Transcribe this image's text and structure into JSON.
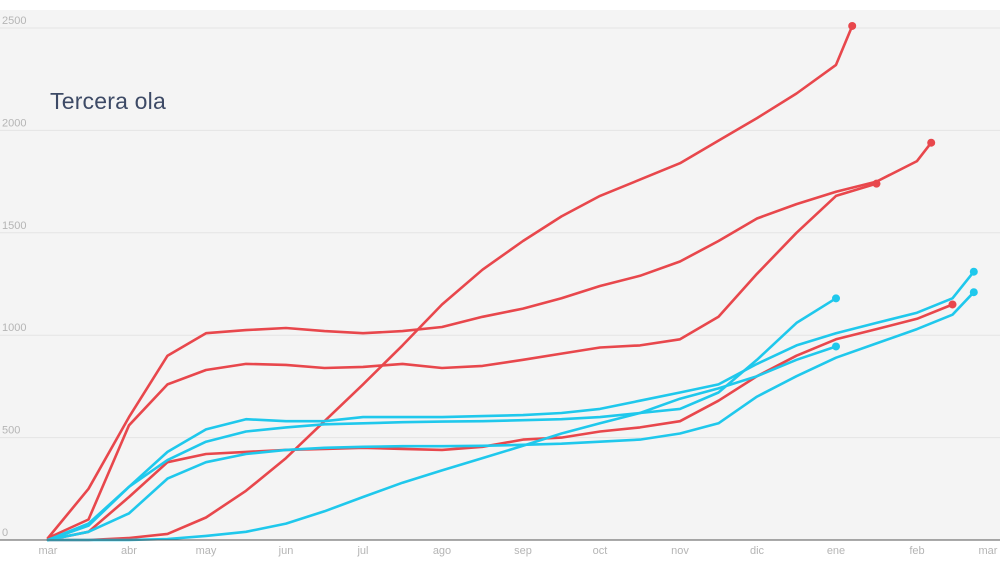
{
  "chart_data": {
    "type": "line",
    "title": "Tercera ola",
    "xlabel": "",
    "ylabel": "",
    "x_ticks": [
      "mar",
      "abr",
      "may",
      "jun",
      "jul",
      "ago",
      "sep",
      "oct",
      "nov",
      "dic",
      "ene",
      "feb",
      "mar"
    ],
    "y_ticks": [
      0,
      500,
      1000,
      1500,
      2000,
      2500
    ],
    "ylim": [
      0,
      2500
    ],
    "grid": true,
    "plot_background": "#f4f4f4",
    "series": [
      {
        "color": "#e8474c",
        "points": [
          [
            "mar",
            10
          ],
          [
            "mar+0.5",
            250
          ],
          [
            "abr",
            600
          ],
          [
            "abr+0.5",
            900
          ],
          [
            "may",
            1010
          ],
          [
            "may+0.5",
            1025
          ],
          [
            "jun",
            1035
          ],
          [
            "jun+0.5",
            1020
          ],
          [
            "jul",
            1010
          ],
          [
            "jul+0.5",
            1020
          ],
          [
            "ago",
            1040
          ],
          [
            "ago+0.5",
            1090
          ],
          [
            "sep",
            1130
          ],
          [
            "sep+0.5",
            1180
          ],
          [
            "oct",
            1240
          ],
          [
            "oct+0.5",
            1290
          ],
          [
            "nov",
            1360
          ],
          [
            "nov+0.5",
            1460
          ],
          [
            "dic",
            1570
          ],
          [
            "dic+0.5",
            1640
          ],
          [
            "ene",
            1700
          ],
          [
            "ene+0.5",
            1750
          ],
          [
            "feb",
            1850
          ],
          [
            "feb+0.2",
            1940
          ]
        ],
        "end_marker": true
      },
      {
        "color": "#e8474c",
        "points": [
          [
            "mar",
            10
          ],
          [
            "mar+0.5",
            100
          ],
          [
            "abr",
            560
          ],
          [
            "abr+0.5",
            760
          ],
          [
            "may",
            830
          ],
          [
            "may+0.5",
            860
          ],
          [
            "jun",
            855
          ],
          [
            "jun+0.5",
            840
          ],
          [
            "jul",
            845
          ],
          [
            "jul+0.5",
            860
          ],
          [
            "ago",
            840
          ],
          [
            "ago+0.5",
            850
          ],
          [
            "sep",
            880
          ],
          [
            "sep+0.5",
            910
          ],
          [
            "oct",
            940
          ],
          [
            "oct+0.5",
            950
          ],
          [
            "nov",
            980
          ],
          [
            "nov+0.5",
            1090
          ],
          [
            "dic",
            1300
          ],
          [
            "dic+0.5",
            1500
          ],
          [
            "ene",
            1680
          ],
          [
            "ene+0.5",
            1740
          ]
        ],
        "end_marker": true
      },
      {
        "color": "#e8474c",
        "points": [
          [
            "mar",
            0
          ],
          [
            "mar+0.5",
            0
          ],
          [
            "abr",
            10
          ],
          [
            "abr+0.5",
            30
          ],
          [
            "may",
            110
          ],
          [
            "may+0.5",
            240
          ],
          [
            "jun",
            400
          ],
          [
            "jun+0.5",
            580
          ],
          [
            "jul",
            760
          ],
          [
            "jul+0.5",
            950
          ],
          [
            "ago",
            1150
          ],
          [
            "ago+0.5",
            1320
          ],
          [
            "sep",
            1460
          ],
          [
            "sep+0.5",
            1580
          ],
          [
            "oct",
            1680
          ],
          [
            "oct+0.5",
            1760
          ],
          [
            "nov",
            1840
          ],
          [
            "nov+0.5",
            1950
          ],
          [
            "dic",
            2060
          ],
          [
            "dic+0.5",
            2180
          ],
          [
            "ene",
            2320
          ],
          [
            "ene+0.2",
            2510
          ]
        ],
        "end_marker": true
      },
      {
        "color": "#e8474c",
        "points": [
          [
            "mar",
            0
          ],
          [
            "mar+0.5",
            40
          ],
          [
            "abr",
            210
          ],
          [
            "abr+0.5",
            380
          ],
          [
            "may",
            420
          ],
          [
            "may+0.5",
            430
          ],
          [
            "jun",
            440
          ],
          [
            "jun+0.5",
            445
          ],
          [
            "jul",
            450
          ],
          [
            "jul+0.5",
            445
          ],
          [
            "ago",
            440
          ],
          [
            "ago+0.5",
            455
          ],
          [
            "sep",
            490
          ],
          [
            "sep+0.5",
            500
          ],
          [
            "oct",
            530
          ],
          [
            "oct+0.5",
            550
          ],
          [
            "nov",
            580
          ],
          [
            "nov+0.5",
            680
          ],
          [
            "dic",
            800
          ],
          [
            "dic+0.5",
            900
          ],
          [
            "ene",
            980
          ],
          [
            "ene+0.5",
            1030
          ],
          [
            "feb",
            1080
          ],
          [
            "feb+0.5",
            1150
          ]
        ],
        "end_marker": true
      },
      {
        "color": "#1fc8ec",
        "points": [
          [
            "mar",
            0
          ],
          [
            "mar+0.5",
            80
          ],
          [
            "abr",
            260
          ],
          [
            "abr+0.5",
            430
          ],
          [
            "may",
            540
          ],
          [
            "may+0.5",
            590
          ],
          [
            "jun",
            580
          ],
          [
            "jun+0.5",
            580
          ],
          [
            "jul",
            600
          ],
          [
            "jul+0.5",
            600
          ],
          [
            "ago",
            600
          ],
          [
            "ago+0.5",
            605
          ],
          [
            "sep",
            610
          ],
          [
            "sep+0.5",
            620
          ],
          [
            "oct",
            640
          ],
          [
            "oct+0.5",
            680
          ],
          [
            "nov",
            720
          ],
          [
            "nov+0.5",
            760
          ],
          [
            "dic",
            860
          ],
          [
            "dic+0.5",
            950
          ],
          [
            "ene",
            1010
          ],
          [
            "ene+0.5",
            1060
          ],
          [
            "feb",
            1110
          ],
          [
            "feb+0.5",
            1180
          ],
          [
            "feb+0.8",
            1310
          ]
        ],
        "end_marker": true
      },
      {
        "color": "#1fc8ec",
        "points": [
          [
            "mar",
            0
          ],
          [
            "mar+0.5",
            70
          ],
          [
            "abr",
            260
          ],
          [
            "abr+0.5",
            390
          ],
          [
            "may",
            480
          ],
          [
            "may+0.5",
            530
          ],
          [
            "jun",
            550
          ],
          [
            "jun+0.5",
            565
          ],
          [
            "jul",
            570
          ],
          [
            "jul+0.5",
            575
          ],
          [
            "ago",
            578
          ],
          [
            "ago+0.5",
            580
          ],
          [
            "sep",
            585
          ],
          [
            "sep+0.5",
            590
          ],
          [
            "oct",
            600
          ],
          [
            "oct+0.5",
            620
          ],
          [
            "nov",
            640
          ],
          [
            "nov+0.5",
            720
          ],
          [
            "dic",
            880
          ],
          [
            "dic+0.5",
            1060
          ],
          [
            "ene",
            1180
          ]
        ],
        "end_marker": true
      },
      {
        "color": "#1fc8ec",
        "points": [
          [
            "mar",
            0
          ],
          [
            "mar+0.5",
            40
          ],
          [
            "abr",
            130
          ],
          [
            "abr+0.5",
            300
          ],
          [
            "may",
            380
          ],
          [
            "may+0.5",
            420
          ],
          [
            "jun",
            440
          ],
          [
            "jun+0.5",
            450
          ],
          [
            "jul",
            455
          ],
          [
            "jul+0.5",
            458
          ],
          [
            "ago",
            458
          ],
          [
            "ago+0.5",
            460
          ],
          [
            "sep",
            465
          ],
          [
            "sep+0.5",
            470
          ],
          [
            "oct",
            480
          ],
          [
            "oct+0.5",
            490
          ],
          [
            "nov",
            520
          ],
          [
            "nov+0.5",
            570
          ],
          [
            "dic",
            700
          ],
          [
            "dic+0.5",
            800
          ],
          [
            "ene",
            890
          ],
          [
            "ene+0.5",
            960
          ],
          [
            "feb",
            1030
          ],
          [
            "feb+0.5",
            1100
          ],
          [
            "feb+0.8",
            1210
          ]
        ],
        "end_marker": true
      },
      {
        "color": "#1fc8ec",
        "points": [
          [
            "mar",
            0
          ],
          [
            "mar+0.5",
            0
          ],
          [
            "abr",
            0
          ],
          [
            "abr+0.5",
            5
          ],
          [
            "may",
            20
          ],
          [
            "may+0.5",
            40
          ],
          [
            "jun",
            80
          ],
          [
            "jun+0.5",
            140
          ],
          [
            "jul",
            210
          ],
          [
            "jul+0.5",
            280
          ],
          [
            "ago",
            340
          ],
          [
            "ago+0.5",
            400
          ],
          [
            "sep",
            460
          ],
          [
            "sep+0.5",
            520
          ],
          [
            "oct",
            570
          ],
          [
            "oct+0.5",
            620
          ],
          [
            "nov",
            690
          ],
          [
            "nov+0.5",
            740
          ],
          [
            "dic",
            800
          ],
          [
            "dic+0.5",
            880
          ],
          [
            "ene",
            945
          ]
        ],
        "end_marker": true
      }
    ]
  }
}
